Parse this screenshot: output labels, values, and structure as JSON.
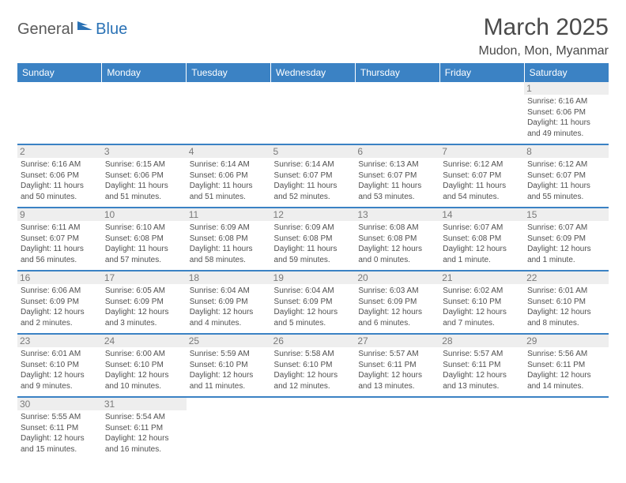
{
  "logo": {
    "dark": "General",
    "blue": "Blue"
  },
  "title": "March 2025",
  "location": "Mudon, Mon, Myanmar",
  "colors": {
    "header_bg": "#3b82c4",
    "header_text": "#ffffff",
    "cell_border": "#3b82c4",
    "daynum_bg": "#eeeeee",
    "text": "#505050"
  },
  "weekdays": [
    "Sunday",
    "Monday",
    "Tuesday",
    "Wednesday",
    "Thursday",
    "Friday",
    "Saturday"
  ],
  "weeks": [
    [
      {
        "n": "",
        "t": ""
      },
      {
        "n": "",
        "t": ""
      },
      {
        "n": "",
        "t": ""
      },
      {
        "n": "",
        "t": ""
      },
      {
        "n": "",
        "t": ""
      },
      {
        "n": "",
        "t": ""
      },
      {
        "n": "1",
        "t": "Sunrise: 6:16 AM\nSunset: 6:06 PM\nDaylight: 11 hours and 49 minutes."
      }
    ],
    [
      {
        "n": "2",
        "t": "Sunrise: 6:16 AM\nSunset: 6:06 PM\nDaylight: 11 hours and 50 minutes."
      },
      {
        "n": "3",
        "t": "Sunrise: 6:15 AM\nSunset: 6:06 PM\nDaylight: 11 hours and 51 minutes."
      },
      {
        "n": "4",
        "t": "Sunrise: 6:14 AM\nSunset: 6:06 PM\nDaylight: 11 hours and 51 minutes."
      },
      {
        "n": "5",
        "t": "Sunrise: 6:14 AM\nSunset: 6:07 PM\nDaylight: 11 hours and 52 minutes."
      },
      {
        "n": "6",
        "t": "Sunrise: 6:13 AM\nSunset: 6:07 PM\nDaylight: 11 hours and 53 minutes."
      },
      {
        "n": "7",
        "t": "Sunrise: 6:12 AM\nSunset: 6:07 PM\nDaylight: 11 hours and 54 minutes."
      },
      {
        "n": "8",
        "t": "Sunrise: 6:12 AM\nSunset: 6:07 PM\nDaylight: 11 hours and 55 minutes."
      }
    ],
    [
      {
        "n": "9",
        "t": "Sunrise: 6:11 AM\nSunset: 6:07 PM\nDaylight: 11 hours and 56 minutes."
      },
      {
        "n": "10",
        "t": "Sunrise: 6:10 AM\nSunset: 6:08 PM\nDaylight: 11 hours and 57 minutes."
      },
      {
        "n": "11",
        "t": "Sunrise: 6:09 AM\nSunset: 6:08 PM\nDaylight: 11 hours and 58 minutes."
      },
      {
        "n": "12",
        "t": "Sunrise: 6:09 AM\nSunset: 6:08 PM\nDaylight: 11 hours and 59 minutes."
      },
      {
        "n": "13",
        "t": "Sunrise: 6:08 AM\nSunset: 6:08 PM\nDaylight: 12 hours and 0 minutes."
      },
      {
        "n": "14",
        "t": "Sunrise: 6:07 AM\nSunset: 6:08 PM\nDaylight: 12 hours and 1 minute."
      },
      {
        "n": "15",
        "t": "Sunrise: 6:07 AM\nSunset: 6:09 PM\nDaylight: 12 hours and 1 minute."
      }
    ],
    [
      {
        "n": "16",
        "t": "Sunrise: 6:06 AM\nSunset: 6:09 PM\nDaylight: 12 hours and 2 minutes."
      },
      {
        "n": "17",
        "t": "Sunrise: 6:05 AM\nSunset: 6:09 PM\nDaylight: 12 hours and 3 minutes."
      },
      {
        "n": "18",
        "t": "Sunrise: 6:04 AM\nSunset: 6:09 PM\nDaylight: 12 hours and 4 minutes."
      },
      {
        "n": "19",
        "t": "Sunrise: 6:04 AM\nSunset: 6:09 PM\nDaylight: 12 hours and 5 minutes."
      },
      {
        "n": "20",
        "t": "Sunrise: 6:03 AM\nSunset: 6:09 PM\nDaylight: 12 hours and 6 minutes."
      },
      {
        "n": "21",
        "t": "Sunrise: 6:02 AM\nSunset: 6:10 PM\nDaylight: 12 hours and 7 minutes."
      },
      {
        "n": "22",
        "t": "Sunrise: 6:01 AM\nSunset: 6:10 PM\nDaylight: 12 hours and 8 minutes."
      }
    ],
    [
      {
        "n": "23",
        "t": "Sunrise: 6:01 AM\nSunset: 6:10 PM\nDaylight: 12 hours and 9 minutes."
      },
      {
        "n": "24",
        "t": "Sunrise: 6:00 AM\nSunset: 6:10 PM\nDaylight: 12 hours and 10 minutes."
      },
      {
        "n": "25",
        "t": "Sunrise: 5:59 AM\nSunset: 6:10 PM\nDaylight: 12 hours and 11 minutes."
      },
      {
        "n": "26",
        "t": "Sunrise: 5:58 AM\nSunset: 6:10 PM\nDaylight: 12 hours and 12 minutes."
      },
      {
        "n": "27",
        "t": "Sunrise: 5:57 AM\nSunset: 6:11 PM\nDaylight: 12 hours and 13 minutes."
      },
      {
        "n": "28",
        "t": "Sunrise: 5:57 AM\nSunset: 6:11 PM\nDaylight: 12 hours and 13 minutes."
      },
      {
        "n": "29",
        "t": "Sunrise: 5:56 AM\nSunset: 6:11 PM\nDaylight: 12 hours and 14 minutes."
      }
    ],
    [
      {
        "n": "30",
        "t": "Sunrise: 5:55 AM\nSunset: 6:11 PM\nDaylight: 12 hours and 15 minutes."
      },
      {
        "n": "31",
        "t": "Sunrise: 5:54 AM\nSunset: 6:11 PM\nDaylight: 12 hours and 16 minutes."
      },
      {
        "n": "",
        "t": ""
      },
      {
        "n": "",
        "t": ""
      },
      {
        "n": "",
        "t": ""
      },
      {
        "n": "",
        "t": ""
      },
      {
        "n": "",
        "t": ""
      }
    ]
  ]
}
